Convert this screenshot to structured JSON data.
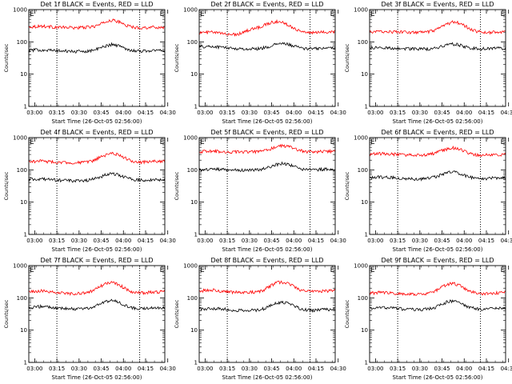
{
  "figure": {
    "background": "#ffffff",
    "colors": {
      "events": "#000000",
      "lld": "#ff0000",
      "axis": "#000000"
    }
  },
  "chart_data": [
    {
      "type": "line",
      "title": "Det 1f BLACK = Events, RED = LLD",
      "xlabel": "Start Time (26-Oct-05 02:56:00)",
      "ylabel": "Counts/sec",
      "x_ticks": [
        "03:00",
        "03:15",
        "03:30",
        "03:45",
        "04:00",
        "04:15",
        "04:30"
      ],
      "x_range_minutes": [
        0,
        92
      ],
      "y_scale": "log",
      "ylim": [
        1,
        1000
      ],
      "y_ticks": [
        "1",
        "10",
        "100",
        "1000"
      ],
      "markers": [
        "E",
        "E"
      ],
      "marker_minutes": [
        0,
        88
      ],
      "dotted_vlines_minutes": [
        19,
        75
      ],
      "series": [
        {
          "color": "#ff0000",
          "x_minutes": [
            0,
            8,
            16,
            24,
            32,
            40,
            44,
            48,
            52,
            56,
            60,
            64,
            68,
            72,
            76,
            80,
            84,
            92
          ],
          "values": [
            290,
            310,
            290,
            280,
            275,
            285,
            300,
            340,
            420,
            470,
            430,
            360,
            300,
            280,
            275,
            280,
            285,
            280
          ]
        },
        {
          "color": "#000000",
          "x_minutes": [
            0,
            8,
            16,
            24,
            32,
            40,
            44,
            48,
            52,
            56,
            60,
            64,
            68,
            72,
            76,
            80,
            84,
            92
          ],
          "values": [
            55,
            57,
            54,
            52,
            50,
            52,
            56,
            63,
            75,
            83,
            78,
            66,
            57,
            53,
            52,
            53,
            54,
            55
          ]
        }
      ]
    },
    {
      "type": "line",
      "title": "Det 2f BLACK = Events, RED = LLD",
      "xlabel": "Start Time (26-Oct-05 02:56:00)",
      "ylabel": "Counts/sec",
      "x_ticks": [
        "03:00",
        "03:15",
        "03:30",
        "03:45",
        "04:00",
        "04:15",
        "04:30"
      ],
      "x_range_minutes": [
        0,
        92
      ],
      "y_scale": "log",
      "ylim": [
        1,
        1000
      ],
      "y_ticks": [
        "1",
        "10",
        "100",
        "1000"
      ],
      "markers": [
        "E",
        "E"
      ],
      "marker_minutes": [
        0,
        88
      ],
      "dotted_vlines_minutes": [
        19,
        75
      ],
      "series": [
        {
          "color": "#ff0000",
          "x_minutes": [
            0,
            8,
            16,
            24,
            28,
            32,
            36,
            40,
            44,
            48,
            52,
            56,
            60,
            64,
            68,
            72,
            76,
            80,
            84,
            92
          ],
          "values": [
            190,
            200,
            180,
            170,
            185,
            220,
            250,
            280,
            330,
            390,
            430,
            400,
            340,
            270,
            220,
            200,
            190,
            195,
            200,
            210
          ]
        },
        {
          "color": "#000000",
          "x_minutes": [
            0,
            8,
            16,
            24,
            32,
            40,
            44,
            48,
            52,
            56,
            60,
            64,
            68,
            72,
            76,
            80,
            84,
            92
          ],
          "values": [
            70,
            72,
            68,
            62,
            60,
            62,
            66,
            72,
            84,
            90,
            84,
            74,
            66,
            62,
            61,
            62,
            64,
            66
          ]
        }
      ]
    },
    {
      "type": "line",
      "title": "Det 3f BLACK = Events, RED = LLD",
      "xlabel": "Start Time (26-Oct-05 02:56:00)",
      "ylabel": "Counts/sec",
      "x_ticks": [
        "03:00",
        "03:15",
        "03:30",
        "03:45",
        "04:00",
        "04:15",
        "04:30"
      ],
      "x_range_minutes": [
        0,
        92
      ],
      "y_scale": "log",
      "ylim": [
        1,
        1000
      ],
      "y_ticks": [
        "1",
        "10",
        "100",
        "1000"
      ],
      "markers": [
        "E",
        "E"
      ],
      "marker_minutes": [
        0,
        88
      ],
      "dotted_vlines_minutes": [
        19,
        75
      ],
      "series": [
        {
          "color": "#ff0000",
          "x_minutes": [
            0,
            8,
            16,
            24,
            32,
            40,
            44,
            48,
            52,
            56,
            60,
            64,
            68,
            72,
            76,
            80,
            84,
            92
          ],
          "values": [
            200,
            210,
            205,
            200,
            195,
            205,
            225,
            270,
            350,
            410,
            390,
            320,
            250,
            215,
            200,
            195,
            200,
            200
          ]
        },
        {
          "color": "#000000",
          "x_minutes": [
            0,
            8,
            16,
            24,
            32,
            40,
            44,
            48,
            52,
            56,
            60,
            64,
            68,
            72,
            76,
            80,
            84,
            92
          ],
          "values": [
            65,
            66,
            64,
            62,
            60,
            61,
            64,
            70,
            80,
            86,
            82,
            72,
            64,
            62,
            61,
            62,
            63,
            64
          ]
        }
      ]
    },
    {
      "type": "line",
      "title": "Det 4f BLACK = Events, RED = LLD",
      "xlabel": "Start Time (26-Oct-05 02:56:00)",
      "ylabel": "Counts/sec",
      "x_ticks": [
        "03:00",
        "03:15",
        "03:30",
        "03:45",
        "04:00",
        "04:15",
        "04:30"
      ],
      "x_range_minutes": [
        0,
        92
      ],
      "y_scale": "log",
      "ylim": [
        1,
        1000
      ],
      "y_ticks": [
        "1",
        "10",
        "100",
        "1000"
      ],
      "markers": [
        "E",
        "E"
      ],
      "marker_minutes": [
        0,
        88
      ],
      "dotted_vlines_minutes": [
        19,
        75
      ],
      "series": [
        {
          "color": "#ff0000",
          "x_minutes": [
            0,
            8,
            16,
            24,
            32,
            40,
            44,
            48,
            52,
            56,
            60,
            64,
            68,
            72,
            76,
            80,
            84,
            92
          ],
          "values": [
            180,
            190,
            175,
            170,
            165,
            175,
            195,
            240,
            290,
            320,
            300,
            250,
            200,
            180,
            175,
            178,
            182,
            185
          ]
        },
        {
          "color": "#000000",
          "x_minutes": [
            0,
            8,
            16,
            24,
            32,
            40,
            44,
            48,
            52,
            56,
            60,
            64,
            68,
            72,
            76,
            80,
            84,
            92
          ],
          "values": [
            50,
            52,
            49,
            47,
            46,
            48,
            52,
            60,
            70,
            76,
            72,
            62,
            53,
            49,
            48,
            49,
            50,
            51
          ]
        }
      ]
    },
    {
      "type": "line",
      "title": "Det 5f BLACK = Events, RED = LLD",
      "xlabel": "Start Time (26-Oct-05 02:56:00)",
      "ylabel": "Counts/sec",
      "x_ticks": [
        "03:00",
        "03:15",
        "03:30",
        "03:45",
        "04:00",
        "04:15",
        "04:30"
      ],
      "x_range_minutes": [
        0,
        92
      ],
      "y_scale": "log",
      "ylim": [
        1,
        1000
      ],
      "y_ticks": [
        "1",
        "10",
        "100",
        "1000"
      ],
      "markers": [
        "E",
        "E"
      ],
      "marker_minutes": [
        0,
        88
      ],
      "dotted_vlines_minutes": [
        19,
        75
      ],
      "series": [
        {
          "color": "#ff0000",
          "x_minutes": [
            0,
            8,
            16,
            24,
            32,
            40,
            44,
            48,
            52,
            56,
            60,
            64,
            68,
            72,
            76,
            80,
            84,
            92
          ],
          "values": [
            370,
            380,
            370,
            360,
            355,
            365,
            390,
            440,
            520,
            560,
            530,
            460,
            400,
            370,
            360,
            365,
            370,
            375
          ]
        },
        {
          "color": "#000000",
          "x_minutes": [
            0,
            8,
            16,
            24,
            32,
            40,
            44,
            48,
            52,
            56,
            60,
            64,
            68,
            72,
            76,
            80,
            84,
            92
          ],
          "values": [
            100,
            105,
            102,
            98,
            96,
            100,
            108,
            122,
            145,
            160,
            150,
            128,
            110,
            102,
            100,
            102,
            104,
            106
          ]
        }
      ]
    },
    {
      "type": "line",
      "title": "Det 6f BLACK = Events, RED = LLD",
      "xlabel": "Start Time (26-Oct-05 02:56:00)",
      "ylabel": "Counts/sec",
      "x_ticks": [
        "03:00",
        "03:15",
        "03:30",
        "03:45",
        "04:00",
        "04:15",
        "04:30"
      ],
      "x_range_minutes": [
        0,
        92
      ],
      "y_scale": "log",
      "ylim": [
        1,
        1000
      ],
      "y_ticks": [
        "1",
        "10",
        "100",
        "1000"
      ],
      "markers": [
        "E",
        "E"
      ],
      "marker_minutes": [
        0,
        88
      ],
      "dotted_vlines_minutes": [
        19,
        75
      ],
      "series": [
        {
          "color": "#ff0000",
          "x_minutes": [
            0,
            8,
            16,
            24,
            32,
            40,
            44,
            48,
            52,
            56,
            60,
            64,
            68,
            72,
            76,
            80,
            84,
            92
          ],
          "values": [
            310,
            320,
            305,
            290,
            285,
            300,
            330,
            380,
            440,
            480,
            450,
            380,
            320,
            295,
            285,
            290,
            295,
            300
          ]
        },
        {
          "color": "#000000",
          "x_minutes": [
            0,
            8,
            16,
            24,
            32,
            40,
            44,
            48,
            52,
            56,
            60,
            64,
            68,
            72,
            76,
            80,
            84,
            92
          ],
          "values": [
            58,
            60,
            57,
            54,
            52,
            55,
            60,
            68,
            80,
            86,
            80,
            68,
            59,
            55,
            53,
            54,
            56,
            57
          ]
        }
      ]
    },
    {
      "type": "line",
      "title": "Det 7f BLACK = Events, RED = LLD",
      "xlabel": "Start Time (26-Oct-05 02:56:00)",
      "ylabel": "Counts/sec",
      "x_ticks": [
        "03:00",
        "03:15",
        "03:30",
        "03:45",
        "04:00",
        "04:15",
        "04:30"
      ],
      "x_range_minutes": [
        0,
        92
      ],
      "y_scale": "log",
      "ylim": [
        1,
        1000
      ],
      "y_ticks": [
        "1",
        "10",
        "100",
        "1000"
      ],
      "markers": [
        "E",
        "E"
      ],
      "marker_minutes": [
        0,
        88
      ],
      "dotted_vlines_minutes": [
        19,
        75
      ],
      "series": [
        {
          "color": "#ff0000",
          "x_minutes": [
            0,
            8,
            16,
            24,
            32,
            40,
            44,
            48,
            52,
            56,
            60,
            64,
            68,
            72,
            76,
            80,
            84,
            92
          ],
          "values": [
            150,
            165,
            150,
            140,
            135,
            145,
            170,
            220,
            280,
            300,
            270,
            210,
            165,
            148,
            142,
            145,
            150,
            155
          ]
        },
        {
          "color": "#000000",
          "x_minutes": [
            0,
            8,
            16,
            24,
            32,
            40,
            44,
            48,
            52,
            56,
            60,
            64,
            68,
            72,
            76,
            80,
            84,
            92
          ],
          "values": [
            50,
            54,
            50,
            47,
            45,
            47,
            53,
            64,
            78,
            84,
            76,
            62,
            52,
            48,
            46,
            47,
            49,
            50
          ]
        }
      ]
    },
    {
      "type": "line",
      "title": "Det 8f BLACK = Events, RED = LLD",
      "xlabel": "Start Time (26-Oct-05 02:56:00)",
      "ylabel": "Counts/sec",
      "x_ticks": [
        "03:00",
        "03:15",
        "03:30",
        "03:45",
        "04:00",
        "04:15",
        "04:30"
      ],
      "x_range_minutes": [
        0,
        92
      ],
      "y_scale": "log",
      "ylim": [
        1,
        1000
      ],
      "y_ticks": [
        "1",
        "10",
        "100",
        "1000"
      ],
      "markers": [
        "E",
        "E"
      ],
      "marker_minutes": [
        0,
        88
      ],
      "dotted_vlines_minutes": [
        19,
        75
      ],
      "series": [
        {
          "color": "#ff0000",
          "x_minutes": [
            0,
            8,
            16,
            24,
            32,
            40,
            44,
            48,
            52,
            56,
            60,
            64,
            68,
            72,
            76,
            80,
            84,
            92
          ],
          "values": [
            165,
            175,
            160,
            150,
            145,
            155,
            180,
            230,
            290,
            310,
            285,
            230,
            180,
            160,
            155,
            158,
            162,
            168
          ]
        },
        {
          "color": "#000000",
          "x_minutes": [
            0,
            8,
            16,
            24,
            32,
            40,
            44,
            48,
            52,
            56,
            60,
            64,
            68,
            72,
            76,
            80,
            84,
            92
          ],
          "values": [
            45,
            48,
            45,
            42,
            40,
            42,
            47,
            56,
            68,
            74,
            68,
            56,
            47,
            43,
            41,
            42,
            44,
            45
          ]
        }
      ]
    },
    {
      "type": "line",
      "title": "Det 9f BLACK = Events, RED = LLD",
      "xlabel": "Start Time (26-Oct-05 02:56:00)",
      "ylabel": "Counts/sec",
      "x_ticks": [
        "03:00",
        "03:15",
        "03:30",
        "03:45",
        "04:00",
        "04:15",
        "04:30"
      ],
      "x_range_minutes": [
        0,
        92
      ],
      "y_scale": "log",
      "ylim": [
        1,
        1000
      ],
      "y_ticks": [
        "1",
        "10",
        "100",
        "1000"
      ],
      "markers": [
        "E",
        "E"
      ],
      "marker_minutes": [
        0,
        88
      ],
      "dotted_vlines_minutes": [
        19,
        75
      ],
      "series": [
        {
          "color": "#ff0000",
          "x_minutes": [
            0,
            8,
            16,
            24,
            32,
            40,
            44,
            48,
            52,
            56,
            60,
            64,
            68,
            72,
            76,
            80,
            84,
            92
          ],
          "values": [
            140,
            150,
            140,
            132,
            128,
            138,
            160,
            205,
            260,
            280,
            255,
            200,
            158,
            140,
            135,
            138,
            142,
            146
          ]
        },
        {
          "color": "#000000",
          "x_minutes": [
            0,
            8,
            16,
            24,
            32,
            40,
            44,
            48,
            52,
            56,
            60,
            64,
            68,
            72,
            76,
            80,
            84,
            92
          ],
          "values": [
            48,
            51,
            48,
            45,
            43,
            45,
            50,
            60,
            74,
            80,
            73,
            60,
            50,
            46,
            44,
            45,
            47,
            48
          ]
        }
      ]
    }
  ]
}
